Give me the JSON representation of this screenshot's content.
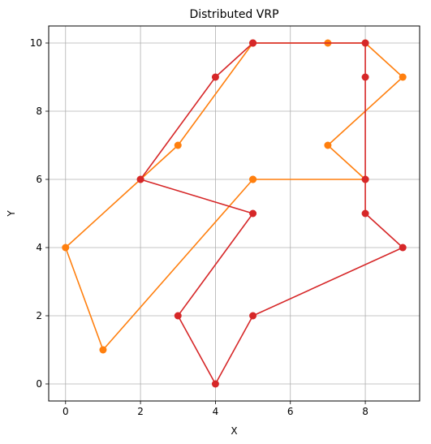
{
  "chart_data": {
    "type": "line",
    "title": "Distributed VRP",
    "xlabel": "X",
    "ylabel": "Y",
    "xlim": [
      -0.45,
      9.45
    ],
    "ylim": [
      -0.5,
      10.5
    ],
    "xticks": [
      0,
      2,
      4,
      6,
      8
    ],
    "yticks": [
      0,
      2,
      4,
      6,
      8,
      10
    ],
    "grid": true,
    "legend": "none",
    "series": [
      {
        "color": "#ff7f0e",
        "markers": true,
        "points": [
          [
            5,
            6
          ],
          [
            8,
            6
          ],
          [
            7,
            7
          ],
          [
            9,
            9
          ],
          [
            8,
            10
          ],
          [
            7,
            10
          ],
          [
            5,
            10
          ],
          [
            3,
            7
          ],
          [
            2,
            6
          ],
          [
            0,
            4
          ],
          [
            1,
            1
          ],
          [
            5,
            6
          ]
        ]
      },
      {
        "color": "#d62728",
        "markers": true,
        "points": [
          [
            5,
            10
          ],
          [
            4,
            9
          ],
          [
            2,
            6
          ],
          [
            5,
            5
          ],
          [
            3,
            2
          ],
          [
            4,
            0
          ],
          [
            5,
            2
          ],
          [
            9,
            4
          ],
          [
            8,
            5
          ],
          [
            8,
            6
          ],
          [
            8,
            9
          ],
          [
            8,
            10
          ],
          [
            5,
            10
          ]
        ]
      }
    ]
  }
}
